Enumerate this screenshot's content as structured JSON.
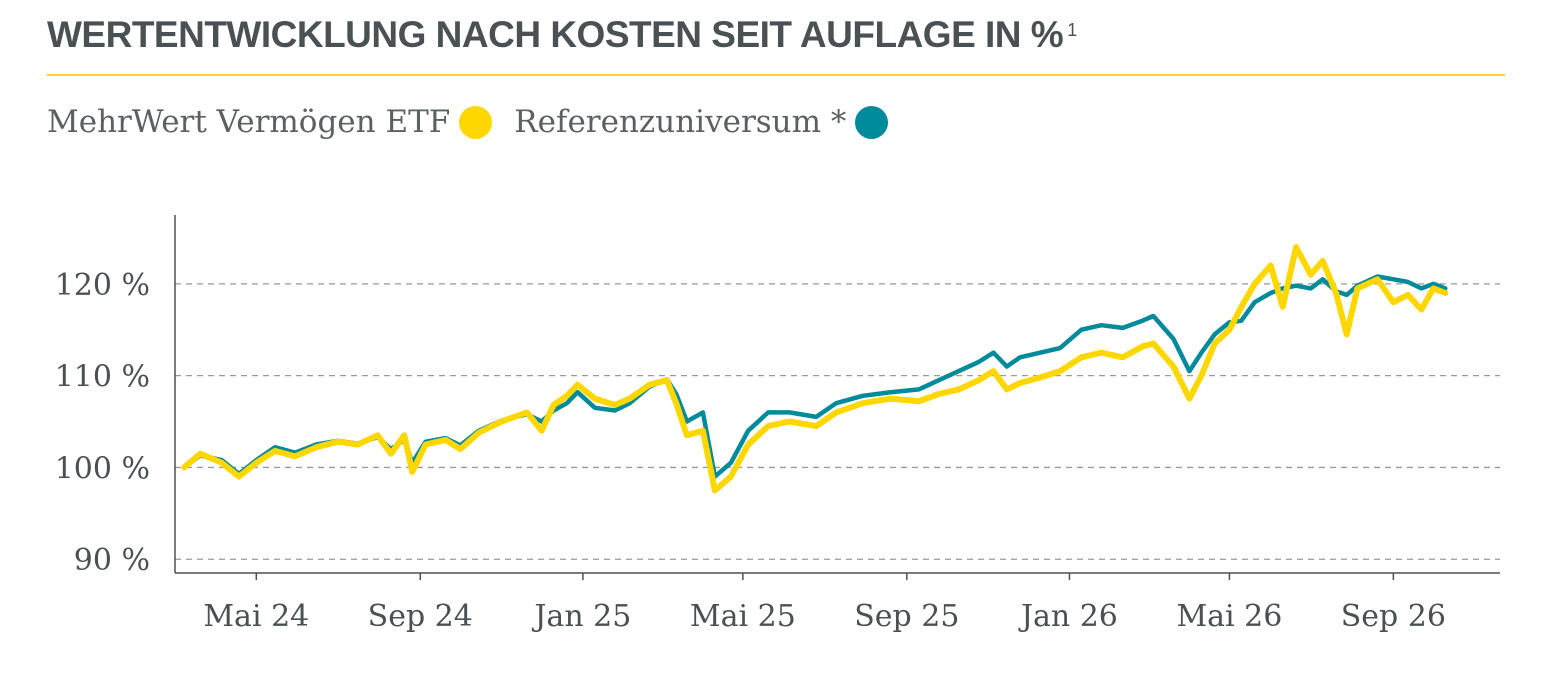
{
  "header": {
    "title": "WERTENTWICKLUNG NACH KOSTEN SEIT AUFLAGE IN %",
    "footnote_mark": "1"
  },
  "legend": {
    "items": [
      {
        "label": "MehrWert Vermögen ETF",
        "color": "#ffd700"
      },
      {
        "label": "Referenzuniversum *",
        "color": "#008b9c"
      }
    ]
  },
  "colors": {
    "accent_rule": "#f7d43a",
    "grid": "#9a9a9a",
    "axis": "#4a5154"
  },
  "chart_data": {
    "type": "line",
    "xlabel": "",
    "ylabel": "",
    "x_ticks": [
      "Mai 24",
      "Sep 24",
      "Jan 25",
      "Mai 25",
      "Sep 25",
      "Jan 26",
      "Mai 26",
      "Sep 26"
    ],
    "y_ticks": [
      {
        "value": 90,
        "label": "90 %"
      },
      {
        "value": 100,
        "label": "100 %"
      },
      {
        "value": 110,
        "label": "110 %"
      },
      {
        "value": 120,
        "label": "120 %"
      }
    ],
    "xlim": [
      "2024-03-01",
      "2026-11-20"
    ],
    "ylim": [
      88.5,
      127.5
    ],
    "grid": "horizontal-dashed",
    "legend_position": "top-left",
    "series": [
      {
        "name": "MehrWert Vermögen ETF",
        "color": "#ffd700",
        "points": [
          [
            "2024-03-08",
            100.0
          ],
          [
            "2024-03-20",
            101.5
          ],
          [
            "2024-04-05",
            100.5
          ],
          [
            "2024-04-18",
            99.0
          ],
          [
            "2024-05-01",
            100.5
          ],
          [
            "2024-05-15",
            101.8
          ],
          [
            "2024-05-30",
            101.2
          ],
          [
            "2024-06-15",
            102.2
          ],
          [
            "2024-07-01",
            102.8
          ],
          [
            "2024-07-16",
            102.5
          ],
          [
            "2024-07-31",
            103.5
          ],
          [
            "2024-08-10",
            101.5
          ],
          [
            "2024-08-20",
            103.5
          ],
          [
            "2024-08-26",
            99.5
          ],
          [
            "2024-09-05",
            102.5
          ],
          [
            "2024-09-20",
            103.0
          ],
          [
            "2024-10-01",
            102.0
          ],
          [
            "2024-10-15",
            103.8
          ],
          [
            "2024-11-01",
            105.0
          ],
          [
            "2024-11-20",
            106.0
          ],
          [
            "2024-12-01",
            104.0
          ],
          [
            "2024-12-10",
            106.8
          ],
          [
            "2024-12-20",
            107.8
          ],
          [
            "2024-12-28",
            109.0
          ],
          [
            "2025-01-10",
            107.5
          ],
          [
            "2025-01-25",
            106.8
          ],
          [
            "2025-02-05",
            107.5
          ],
          [
            "2025-02-20",
            109.0
          ],
          [
            "2025-03-05",
            109.5
          ],
          [
            "2025-03-12",
            107.0
          ],
          [
            "2025-03-20",
            103.5
          ],
          [
            "2025-04-01",
            104.0
          ],
          [
            "2025-04-10",
            97.5
          ],
          [
            "2025-04-22",
            99.0
          ],
          [
            "2025-05-05",
            102.5
          ],
          [
            "2025-05-20",
            104.5
          ],
          [
            "2025-06-05",
            105.0
          ],
          [
            "2025-06-25",
            104.5
          ],
          [
            "2025-07-10",
            106.0
          ],
          [
            "2025-07-30",
            107.0
          ],
          [
            "2025-08-20",
            107.5
          ],
          [
            "2025-09-10",
            107.2
          ],
          [
            "2025-09-25",
            108.0
          ],
          [
            "2025-10-10",
            108.5
          ],
          [
            "2025-10-25",
            109.5
          ],
          [
            "2025-11-05",
            110.5
          ],
          [
            "2025-11-15",
            108.5
          ],
          [
            "2025-11-25",
            109.2
          ],
          [
            "2025-12-10",
            109.8
          ],
          [
            "2025-12-25",
            110.5
          ],
          [
            "2026-01-10",
            112.0
          ],
          [
            "2026-01-25",
            112.5
          ],
          [
            "2026-02-10",
            112.0
          ],
          [
            "2026-02-25",
            113.2
          ],
          [
            "2026-03-05",
            113.5
          ],
          [
            "2026-03-20",
            111.0
          ],
          [
            "2026-04-01",
            107.5
          ],
          [
            "2026-04-10",
            110.0
          ],
          [
            "2026-04-20",
            113.5
          ],
          [
            "2026-05-01",
            115.0
          ],
          [
            "2026-05-10",
            117.5
          ],
          [
            "2026-05-20",
            120.0
          ],
          [
            "2026-06-01",
            122.0
          ],
          [
            "2026-06-10",
            117.5
          ],
          [
            "2026-06-20",
            124.0
          ],
          [
            "2026-07-01",
            121.0
          ],
          [
            "2026-07-10",
            122.5
          ],
          [
            "2026-07-20",
            119.0
          ],
          [
            "2026-07-28",
            114.5
          ],
          [
            "2026-08-05",
            119.5
          ],
          [
            "2026-08-20",
            120.5
          ],
          [
            "2026-09-01",
            118.0
          ],
          [
            "2026-09-12",
            118.8
          ],
          [
            "2026-09-22",
            117.2
          ],
          [
            "2026-10-01",
            119.5
          ],
          [
            "2026-10-10",
            119.0
          ]
        ]
      },
      {
        "name": "Referenzuniversum *",
        "color": "#008b9c",
        "points": [
          [
            "2024-03-08",
            100.0
          ],
          [
            "2024-03-20",
            101.3
          ],
          [
            "2024-04-05",
            100.8
          ],
          [
            "2024-04-18",
            99.3
          ],
          [
            "2024-05-01",
            100.8
          ],
          [
            "2024-05-15",
            102.2
          ],
          [
            "2024-05-30",
            101.6
          ],
          [
            "2024-06-15",
            102.5
          ],
          [
            "2024-07-01",
            102.9
          ],
          [
            "2024-07-16",
            102.6
          ],
          [
            "2024-07-31",
            103.3
          ],
          [
            "2024-08-10",
            102.0
          ],
          [
            "2024-08-20",
            103.0
          ],
          [
            "2024-08-26",
            100.5
          ],
          [
            "2024-09-05",
            102.8
          ],
          [
            "2024-09-20",
            103.2
          ],
          [
            "2024-10-01",
            102.4
          ],
          [
            "2024-10-15",
            104.0
          ],
          [
            "2024-11-01",
            105.1
          ],
          [
            "2024-11-20",
            105.8
          ],
          [
            "2024-12-01",
            105.0
          ],
          [
            "2024-12-10",
            106.2
          ],
          [
            "2024-12-20",
            107.0
          ],
          [
            "2024-12-28",
            108.2
          ],
          [
            "2025-01-10",
            106.5
          ],
          [
            "2025-01-25",
            106.2
          ],
          [
            "2025-02-05",
            107.0
          ],
          [
            "2025-02-20",
            108.8
          ],
          [
            "2025-03-05",
            109.6
          ],
          [
            "2025-03-12",
            108.0
          ],
          [
            "2025-03-20",
            105.0
          ],
          [
            "2025-04-01",
            106.0
          ],
          [
            "2025-04-10",
            99.0
          ],
          [
            "2025-04-22",
            100.5
          ],
          [
            "2025-05-05",
            104.0
          ],
          [
            "2025-05-20",
            106.0
          ],
          [
            "2025-06-05",
            106.0
          ],
          [
            "2025-06-25",
            105.5
          ],
          [
            "2025-07-10",
            107.0
          ],
          [
            "2025-07-30",
            107.8
          ],
          [
            "2025-08-20",
            108.2
          ],
          [
            "2025-09-10",
            108.5
          ],
          [
            "2025-09-25",
            109.5
          ],
          [
            "2025-10-10",
            110.5
          ],
          [
            "2025-10-25",
            111.5
          ],
          [
            "2025-11-05",
            112.5
          ],
          [
            "2025-11-15",
            111.0
          ],
          [
            "2025-11-25",
            112.0
          ],
          [
            "2025-12-10",
            112.5
          ],
          [
            "2025-12-25",
            113.0
          ],
          [
            "2026-01-10",
            115.0
          ],
          [
            "2026-01-25",
            115.5
          ],
          [
            "2026-02-10",
            115.2
          ],
          [
            "2026-02-25",
            116.0
          ],
          [
            "2026-03-05",
            116.5
          ],
          [
            "2026-03-20",
            114.0
          ],
          [
            "2026-04-01",
            110.5
          ],
          [
            "2026-04-10",
            112.5
          ],
          [
            "2026-04-20",
            114.5
          ],
          [
            "2026-05-01",
            115.8
          ],
          [
            "2026-05-10",
            116.0
          ],
          [
            "2026-05-20",
            118.0
          ],
          [
            "2026-06-01",
            119.0
          ],
          [
            "2026-06-10",
            119.5
          ],
          [
            "2026-06-20",
            119.8
          ],
          [
            "2026-07-01",
            119.5
          ],
          [
            "2026-07-10",
            120.5
          ],
          [
            "2026-07-20",
            119.2
          ],
          [
            "2026-07-28",
            118.8
          ],
          [
            "2026-08-05",
            119.8
          ],
          [
            "2026-08-20",
            120.8
          ],
          [
            "2026-09-01",
            120.5
          ],
          [
            "2026-09-12",
            120.2
          ],
          [
            "2026-09-22",
            119.5
          ],
          [
            "2026-10-01",
            120.0
          ],
          [
            "2026-10-10",
            119.5
          ]
        ]
      }
    ]
  }
}
